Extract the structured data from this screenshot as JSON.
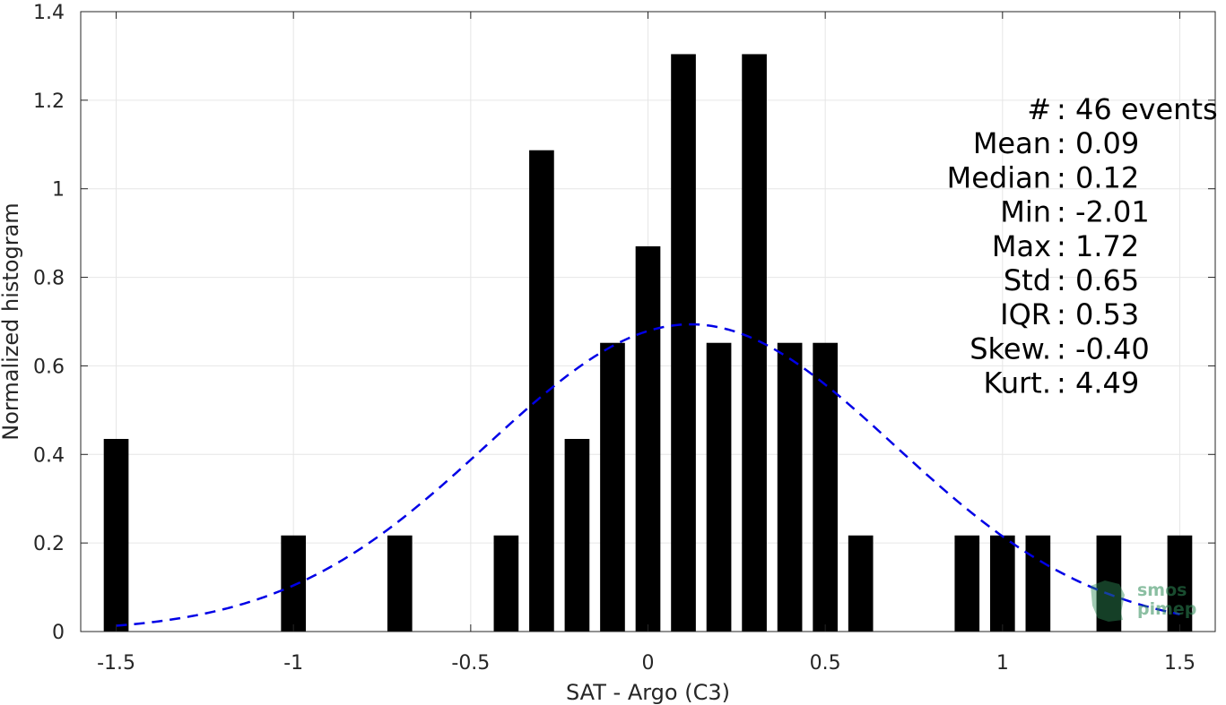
{
  "chart_data": {
    "type": "bar",
    "title": "",
    "xlabel": "SAT - Argo (C3)",
    "ylabel": "Normalized histogram",
    "xlim": [
      -1.6,
      1.6
    ],
    "ylim": [
      0,
      1.4
    ],
    "xticks": [
      -1.5,
      -1,
      -0.5,
      0,
      0.5,
      1,
      1.5
    ],
    "xtick_labels": [
      "-1.5",
      "-1",
      "-0.5",
      "0",
      "0.5",
      "1",
      "1.5"
    ],
    "yticks": [
      0,
      0.2,
      0.4,
      0.6,
      0.8,
      1,
      1.2,
      1.4
    ],
    "ytick_labels": [
      "0",
      "0.2",
      "0.4",
      "0.6",
      "0.8",
      "1",
      "1.2",
      "1.4"
    ],
    "grid": true,
    "bar_width": 0.07,
    "series": [
      {
        "type": "bar",
        "color": "#000000",
        "x": [
          -1.5,
          -1.0,
          -0.7,
          -0.4,
          -0.3,
          -0.2,
          -0.1,
          0.0,
          0.1,
          0.2,
          0.3,
          0.4,
          0.5,
          0.6,
          0.9,
          1.0,
          1.1,
          1.3,
          1.5
        ],
        "values": [
          0.435,
          0.217,
          0.217,
          0.217,
          1.087,
          0.435,
          0.652,
          0.87,
          1.304,
          0.652,
          1.304,
          0.652,
          0.652,
          0.217,
          0.217,
          0.217,
          0.217,
          0.217,
          0.217
        ]
      },
      {
        "type": "line",
        "style": "dashed",
        "color": "#0000e6",
        "mean": 0.12,
        "std": 0.575,
        "scale": 1.0,
        "x_range": [
          -1.5,
          1.5
        ]
      }
    ],
    "annotations": [
      "#  : 46 events",
      "Mean : 0.09",
      "Median : 0.12",
      "Min : -2.01",
      "Max : 1.72",
      "Std : 0.65",
      "IQR : 0.53",
      "Skew. : -0.40",
      "Kurt. : 4.49"
    ]
  },
  "logo": {
    "lines": [
      "smos",
      "pimep"
    ],
    "color": "#2e8b57"
  }
}
